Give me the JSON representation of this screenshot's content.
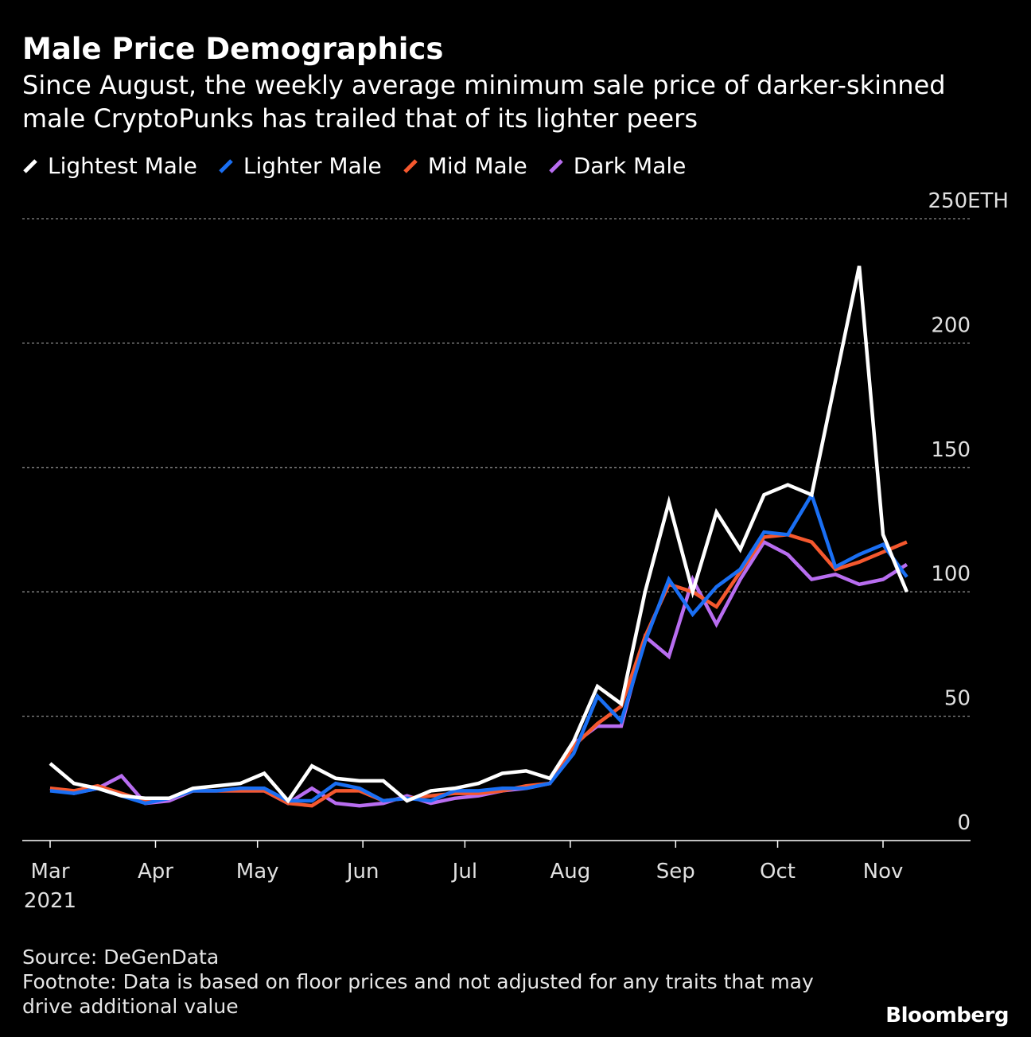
{
  "header": {
    "title": "Male Price Demographics",
    "subtitle": "Since August, the weekly average minimum sale price of darker-skinned male CryptoPunks has trailed that of its lighter peers"
  },
  "footer": {
    "source": "Source: DeGenData",
    "footnote": "Footnote: Data is based on floor prices and not adjusted for any traits that may drive additional value",
    "brand": "Bloomberg"
  },
  "chart_data": {
    "type": "line",
    "title": "Male Price Demographics",
    "subtitle": "Since August, the weekly average minimum sale price of darker-skinned male CryptoPunks has trailed that of its lighter peers",
    "ylabel": "",
    "yunit": "ETH",
    "ylim": [
      0,
      250
    ],
    "yticks": [
      0,
      50,
      100,
      150,
      200,
      250
    ],
    "ytick_labels": [
      "0",
      "50",
      "100",
      "150",
      "200",
      "250ETH"
    ],
    "xticks": [
      "2021-03-01",
      "2021-04-01",
      "2021-05-01",
      "2021-06-01",
      "2021-07-01",
      "2021-08-01",
      "2021-09-01",
      "2021-10-01",
      "2021-11-01"
    ],
    "xtick_labels": [
      "Mar",
      "Apr",
      "May",
      "Jun",
      "Jul",
      "Aug",
      "Sep",
      "Oct",
      "Nov"
    ],
    "xtick_sublabels": [
      "2021",
      "",
      "",
      "",
      "",
      "",
      "",
      "",
      ""
    ],
    "grid": true,
    "legend": "top-left",
    "x": [
      "2021-03-01",
      "2021-03-08",
      "2021-03-15",
      "2021-03-22",
      "2021-03-29",
      "2021-04-05",
      "2021-04-12",
      "2021-04-19",
      "2021-04-26",
      "2021-05-03",
      "2021-05-10",
      "2021-05-17",
      "2021-05-24",
      "2021-05-31",
      "2021-06-07",
      "2021-06-14",
      "2021-06-21",
      "2021-06-28",
      "2021-07-05",
      "2021-07-12",
      "2021-07-19",
      "2021-07-26",
      "2021-08-02",
      "2021-08-09",
      "2021-08-16",
      "2021-08-23",
      "2021-08-30",
      "2021-09-06",
      "2021-09-13",
      "2021-09-20",
      "2021-09-27",
      "2021-10-04",
      "2021-10-11",
      "2021-10-18",
      "2021-10-25",
      "2021-11-01",
      "2021-11-08"
    ],
    "series": [
      {
        "name": "Lightest Male",
        "color": "#ffffff",
        "values": [
          31,
          23,
          21,
          18,
          17,
          17,
          21,
          22,
          23,
          27,
          16,
          30,
          25,
          24,
          24,
          16,
          20,
          21,
          23,
          27,
          28,
          25,
          40,
          62,
          55,
          100,
          136,
          100,
          132,
          117,
          139,
          143,
          139,
          185,
          231,
          123,
          100
        ]
      },
      {
        "name": "Lighter Male",
        "color": "#1a6ff3",
        "values": [
          20,
          19,
          21,
          18,
          15,
          17,
          20,
          20,
          21,
          21,
          16,
          16,
          23,
          21,
          16,
          17,
          16,
          20,
          20,
          21,
          21,
          23,
          35,
          58,
          48,
          80,
          105,
          91,
          102,
          109,
          124,
          123,
          139,
          110,
          115,
          119,
          106
        ]
      },
      {
        "name": "Mid Male",
        "color": "#f5582e",
        "values": [
          21,
          20,
          22,
          19,
          16,
          17,
          20,
          20,
          20,
          20,
          15,
          14,
          20,
          20,
          16,
          17,
          18,
          19,
          19,
          20,
          22,
          23,
          38,
          47,
          54,
          82,
          103,
          100,
          94,
          108,
          122,
          123,
          120,
          109,
          112,
          116,
          120
        ]
      },
      {
        "name": "Dark Male",
        "color": "#b86df0",
        "values": [
          21,
          19,
          21,
          26,
          15,
          16,
          20,
          20,
          20,
          20,
          15,
          21,
          15,
          14,
          15,
          18,
          15,
          17,
          18,
          20,
          21,
          23,
          39,
          46,
          46,
          82,
          74,
          105,
          87,
          105,
          120,
          115,
          105,
          107,
          103,
          105,
          111
        ]
      }
    ]
  }
}
